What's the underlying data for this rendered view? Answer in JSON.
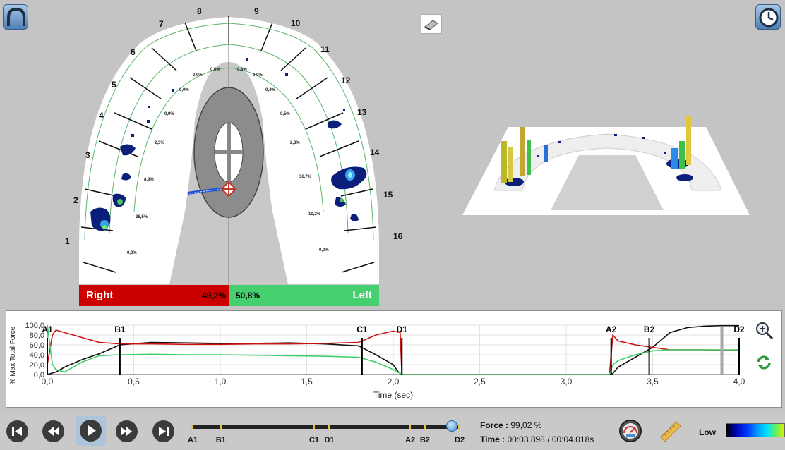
{
  "arch": {
    "tooth_numbers_right": [
      "1",
      "2",
      "3",
      "4",
      "5",
      "6",
      "7",
      "8"
    ],
    "tooth_numbers_left": [
      "9",
      "10",
      "11",
      "12",
      "13",
      "14",
      "15",
      "16"
    ],
    "percent_labels": [
      "0,0%",
      "36,5%",
      "8,9%",
      "2,3%",
      "0,9%",
      "0,0%",
      "0,0%",
      "0,0%",
      "0,6%",
      "0,0%",
      "0,4%",
      "0,5%",
      "2,3%",
      "36,7%",
      "10,2%",
      "0,0%"
    ]
  },
  "balance": {
    "right_label": "Right",
    "right_value": "49,2%",
    "left_value": "50,8%",
    "left_label": "Left",
    "right_color": "#cc0000",
    "left_color": "#45cf6e"
  },
  "chart_data": {
    "type": "line",
    "xlabel": "Time (sec)",
    "ylabel": "% Max Total Force",
    "xlim": [
      0,
      4.0
    ],
    "ylim": [
      0,
      100
    ],
    "x_ticks": [
      "0,0",
      "0,5",
      "1,0",
      "1,5",
      "2,0",
      "2,5",
      "3,0",
      "3,5",
      "4,0"
    ],
    "y_ticks": [
      "0,0",
      "20,0",
      "40,0",
      "60,0",
      "80,0",
      "100,0"
    ],
    "grid": true,
    "markers": [
      {
        "label": "A1",
        "t": 0.0
      },
      {
        "label": "B1",
        "t": 0.42
      },
      {
        "label": "C1",
        "t": 1.82
      },
      {
        "label": "D1",
        "t": 2.05
      },
      {
        "label": "A2",
        "t": 3.26
      },
      {
        "label": "B2",
        "t": 3.48
      },
      {
        "label": "D2",
        "t": 4.0
      }
    ],
    "series": [
      {
        "color": "#111111",
        "x": [
          0,
          0.05,
          0.1,
          0.2,
          0.3,
          0.42,
          0.6,
          0.8,
          1.0,
          1.2,
          1.4,
          1.6,
          1.8,
          1.9,
          2.0,
          2.03,
          2.05,
          2.5,
          3.0,
          3.25,
          3.27,
          3.3,
          3.4,
          3.5,
          3.6,
          3.7,
          3.8,
          3.9,
          4.0
        ],
        "y": [
          0,
          5,
          15,
          30,
          42,
          60,
          65,
          64,
          63,
          63,
          64,
          62,
          58,
          40,
          20,
          5,
          0,
          0,
          0,
          0,
          2,
          15,
          35,
          55,
          85,
          95,
          98,
          99,
          99
        ]
      },
      {
        "color": "#cc1111",
        "x": [
          0,
          0.03,
          0.05,
          0.1,
          0.2,
          0.3,
          0.42,
          0.6,
          0.8,
          1.0,
          1.2,
          1.4,
          1.6,
          1.8,
          1.9,
          2.0,
          2.04,
          2.05,
          2.5,
          3.0,
          3.25,
          3.27,
          3.3,
          3.4,
          3.5,
          3.6,
          3.8,
          4.0
        ],
        "y": [
          20,
          80,
          90,
          85,
          75,
          65,
          62,
          62,
          61,
          61,
          62,
          62,
          63,
          65,
          80,
          88,
          85,
          0,
          0,
          0,
          0,
          80,
          68,
          60,
          55,
          50,
          50,
          49
        ]
      },
      {
        "color": "#3fcf6a",
        "x": [
          0,
          0.03,
          0.05,
          0.1,
          0.2,
          0.3,
          0.42,
          0.6,
          0.8,
          1.0,
          1.2,
          1.4,
          1.6,
          1.8,
          1.9,
          2.0,
          2.05,
          2.5,
          3.0,
          3.25,
          3.27,
          3.3,
          3.4,
          3.5,
          3.6,
          3.8,
          4.0
        ],
        "y": [
          100,
          20,
          10,
          5,
          25,
          38,
          40,
          41,
          40,
          40,
          39,
          38,
          37,
          35,
          25,
          10,
          0,
          0,
          0,
          0,
          20,
          28,
          40,
          48,
          50,
          50,
          50
        ]
      }
    ]
  },
  "playback": {
    "timeline_labels": [
      "A1",
      "B1",
      "C1",
      "D1",
      "A2",
      "B2",
      "D2"
    ],
    "timeline_positions": [
      0.0,
      0.105,
      0.455,
      0.512,
      0.815,
      0.87,
      1.0
    ],
    "progress": 0.974,
    "force_label": "Force :",
    "force_value": "99,02 %",
    "time_label": "Time :",
    "time_value": "00:03.898 / 00:04.018s",
    "scale_label": "Low"
  },
  "icons": {
    "top_left": "arch-icon",
    "top_right": "clock-icon",
    "center_top": "eraser-icon",
    "zoom": "zoom-in-icon",
    "refresh": "refresh-icon",
    "gauge": "gauge-icon",
    "ruler": "ruler-icon"
  }
}
